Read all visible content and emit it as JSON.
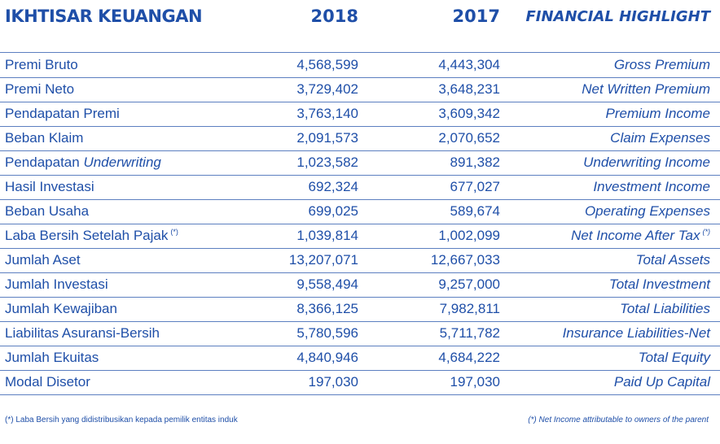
{
  "header": {
    "title_id": "IKHTISAR KEUANGAN",
    "year_2018": "2018",
    "year_2017": "2017",
    "title_en": "FINANCIAL HIGHLIGHT"
  },
  "rows": [
    {
      "id": "Premi Bruto",
      "v2018": "4,568,599",
      "v2017": "4,443,304",
      "en": "Gross Premium"
    },
    {
      "id": "Premi Neto",
      "v2018": "3,729,402",
      "v2017": "3,648,231",
      "en": "Net Written Premium"
    },
    {
      "id": "Pendapatan Premi",
      "v2018": "3,763,140",
      "v2017": "3,609,342",
      "en": "Premium Income"
    },
    {
      "id": "Beban Klaim",
      "v2018": "2,091,573",
      "v2017": "2,070,652",
      "en": "Claim Expenses"
    },
    {
      "id": "Pendapatan",
      "id_italic": "Underwriting",
      "v2018": "1,023,582",
      "v2017": "891,382",
      "en": "Underwriting Income"
    },
    {
      "id": "Hasil Investasi",
      "v2018": "692,324",
      "v2017": "677,027",
      "en": "Investment Income"
    },
    {
      "id": "Beban Usaha",
      "v2018": "699,025",
      "v2017": "589,674",
      "en": "Operating Expenses"
    },
    {
      "id": "Laba Bersih Setelah Pajak",
      "id_sup": "(*)",
      "v2018": "1,039,814",
      "v2017": "1,002,099",
      "en": "Net Income After Tax",
      "en_sup": "(*)"
    },
    {
      "id": "Jumlah Aset",
      "v2018": "13,207,071",
      "v2017": "12,667,033",
      "en": "Total Assets"
    },
    {
      "id": "Jumlah Investasi",
      "v2018": "9,558,494",
      "v2017": "9,257,000",
      "en": "Total Investment"
    },
    {
      "id": "Jumlah Kewajiban",
      "v2018": "8,366,125",
      "v2017": "7,982,811",
      "en": "Total Liabilities"
    },
    {
      "id": "Liabilitas Asuransi-Bersih",
      "v2018": "5,780,596",
      "v2017": "5,711,782",
      "en": "Insurance Liabilities-Net"
    },
    {
      "id": "Jumlah Ekuitas",
      "v2018": "4,840,946",
      "v2017": "4,684,222",
      "en": "Total Equity"
    },
    {
      "id": "Modal Disetor",
      "v2018": "197,030",
      "v2017": "197,030",
      "en": "Paid Up Capital"
    }
  ],
  "footnote": {
    "left": "(*)  Laba Bersih yang didistribusikan kepada pemilik entitas induk",
    "right": "(*) Net Income attributable to owners of the parent"
  },
  "colors": {
    "text": "#1f4fa8",
    "rule": "#5c7fc0"
  }
}
